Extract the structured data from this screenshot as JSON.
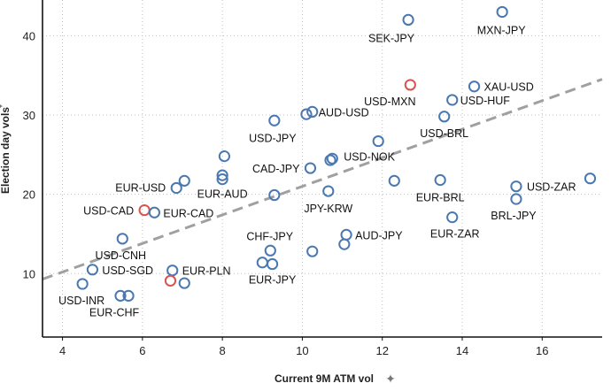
{
  "chart_data": {
    "type": "scatter",
    "title": "",
    "xlabel": "Current 9M ATM vol",
    "ylabel": "Election day vols",
    "xlim": [
      3.5,
      17.5
    ],
    "ylim": [
      2,
      44.5
    ],
    "x_ticks": [
      4,
      6,
      8,
      10,
      12,
      14,
      16
    ],
    "y_ticks": [
      10,
      20,
      30,
      40
    ],
    "x_tick_labels": [
      "4",
      "6",
      "8",
      "10",
      "12",
      "14",
      "16"
    ],
    "y_tick_labels": [
      "10",
      "20",
      "30",
      "40"
    ],
    "grid": "vertical and horizontal dotted",
    "trendline": {
      "x": [
        3.5,
        17.5
      ],
      "y": [
        9.3,
        34.5
      ]
    },
    "colors": {
      "default": "#4a78b0",
      "highlight": "#d9534f",
      "trend": "#a0a0a0",
      "grid": "#bfbfbf"
    },
    "points": [
      {
        "x": 12.65,
        "y": 42.0,
        "label": "SEK-JPY",
        "highlight": false
      },
      {
        "x": 15.0,
        "y": 43.0,
        "label": "MXN-JPY",
        "highlight": false
      },
      {
        "x": 12.7,
        "y": 33.8,
        "label": "USD-MXN",
        "highlight": true
      },
      {
        "x": 14.3,
        "y": 33.6,
        "label": "XAU-USD",
        "highlight": false
      },
      {
        "x": 13.75,
        "y": 31.9,
        "label": "USD-HUF",
        "highlight": false
      },
      {
        "x": 13.55,
        "y": 29.8,
        "label": "USD-BRL",
        "highlight": false
      },
      {
        "x": 10.25,
        "y": 30.4,
        "label": "AUD-USD",
        "highlight": false
      },
      {
        "x": 10.1,
        "y": 30.1,
        "label": "",
        "highlight": false
      },
      {
        "x": 9.3,
        "y": 29.3,
        "label": "USD-JPY",
        "highlight": false
      },
      {
        "x": 11.9,
        "y": 26.7,
        "label": "",
        "highlight": false
      },
      {
        "x": 10.75,
        "y": 24.5,
        "label": "USD-NOK",
        "highlight": false
      },
      {
        "x": 10.7,
        "y": 24.3,
        "label": "",
        "highlight": false
      },
      {
        "x": 10.2,
        "y": 23.3,
        "label": "CAD-JPY",
        "highlight": false
      },
      {
        "x": 8.05,
        "y": 24.8,
        "label": "",
        "highlight": false
      },
      {
        "x": 8.0,
        "y": 22.4,
        "label": "",
        "highlight": false
      },
      {
        "x": 8.0,
        "y": 21.9,
        "label": "EUR-AUD",
        "highlight": false
      },
      {
        "x": 7.05,
        "y": 21.7,
        "label": "",
        "highlight": false
      },
      {
        "x": 6.85,
        "y": 20.8,
        "label": "EUR-USD",
        "highlight": false
      },
      {
        "x": 9.3,
        "y": 19.9,
        "label": "",
        "highlight": false
      },
      {
        "x": 10.65,
        "y": 20.4,
        "label": "JPY-KRW",
        "highlight": false
      },
      {
        "x": 12.3,
        "y": 21.7,
        "label": "",
        "highlight": false
      },
      {
        "x": 13.45,
        "y": 21.8,
        "label": "EUR-BRL",
        "highlight": false
      },
      {
        "x": 15.35,
        "y": 21.0,
        "label": "USD-ZAR",
        "highlight": false
      },
      {
        "x": 17.2,
        "y": 22.0,
        "label": "",
        "highlight": false
      },
      {
        "x": 15.35,
        "y": 19.4,
        "label": "BRL-JPY",
        "highlight": false
      },
      {
        "x": 13.75,
        "y": 17.1,
        "label": "EUR-ZAR",
        "highlight": false
      },
      {
        "x": 6.05,
        "y": 18.0,
        "label": "USD-CAD",
        "highlight": true
      },
      {
        "x": 6.3,
        "y": 17.7,
        "label": "EUR-CAD",
        "highlight": false
      },
      {
        "x": 5.5,
        "y": 14.4,
        "label": "USD-CNH",
        "highlight": false
      },
      {
        "x": 11.1,
        "y": 14.9,
        "label": "AUD-JPY",
        "highlight": false
      },
      {
        "x": 11.05,
        "y": 13.7,
        "label": "",
        "highlight": false
      },
      {
        "x": 10.25,
        "y": 12.8,
        "label": "",
        "highlight": false
      },
      {
        "x": 9.2,
        "y": 12.9,
        "label": "CHF-JPY",
        "highlight": false
      },
      {
        "x": 9.0,
        "y": 11.4,
        "label": "",
        "highlight": false
      },
      {
        "x": 9.25,
        "y": 11.2,
        "label": "EUR-JPY",
        "highlight": false
      },
      {
        "x": 4.75,
        "y": 10.5,
        "label": "USD-SGD",
        "highlight": false
      },
      {
        "x": 6.75,
        "y": 10.4,
        "label": "EUR-PLN",
        "highlight": false
      },
      {
        "x": 4.5,
        "y": 8.7,
        "label": "USD-INR",
        "highlight": false
      },
      {
        "x": 6.7,
        "y": 9.1,
        "label": "",
        "highlight": true
      },
      {
        "x": 7.05,
        "y": 8.8,
        "label": "",
        "highlight": false
      },
      {
        "x": 5.45,
        "y": 7.2,
        "label": "",
        "highlight": false
      },
      {
        "x": 5.65,
        "y": 7.2,
        "label": "EUR-CHF",
        "highlight": false
      }
    ]
  }
}
